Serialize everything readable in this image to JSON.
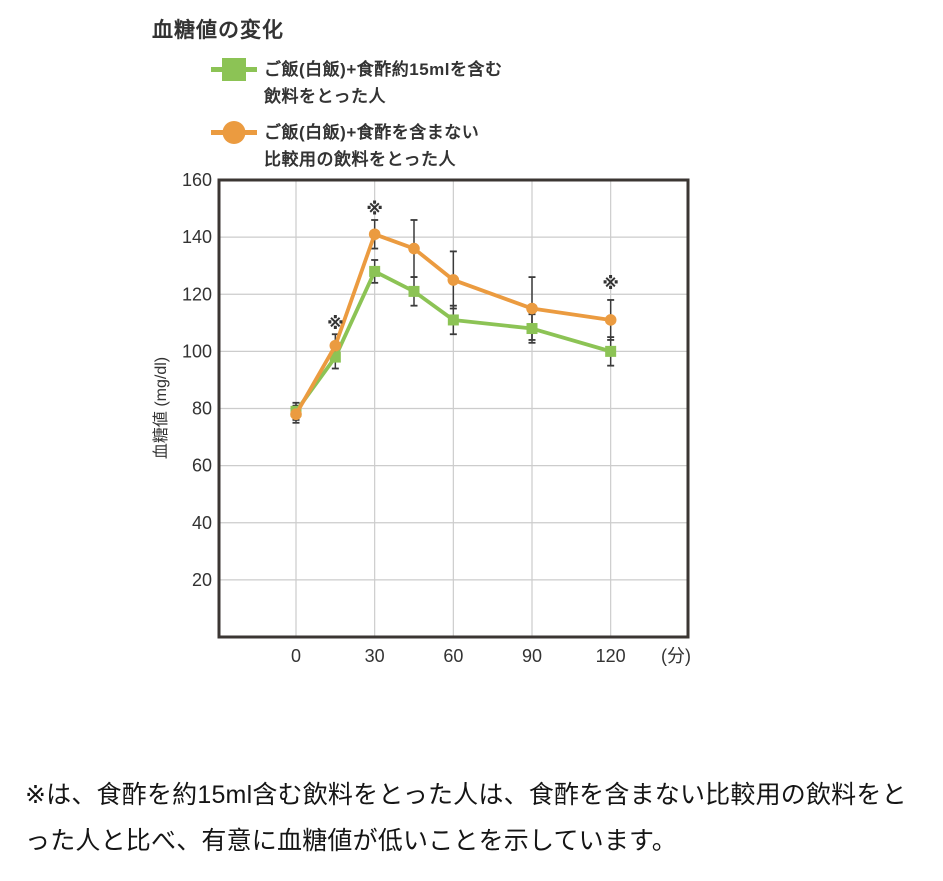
{
  "title": "血糖値の変化",
  "legend": {
    "items": [
      {
        "marker": "square",
        "label_line1": "ご飯(白飯)+食酢約15mlを含む",
        "label_line2": "飲料をとった人"
      },
      {
        "marker": "circle",
        "label_line1": "ご飯(白飯)+食酢を含まない",
        "label_line2": "比較用の飲料をとった人"
      }
    ]
  },
  "footnote": "※は、食酢を約15ml含む飲料をとった人は、食酢を含まない比較用の飲料をとった人と比べ、有意に血糖値が低いことを示しています。",
  "chart_data": {
    "type": "line",
    "title": "血糖値の変化",
    "x": [
      0,
      15,
      30,
      45,
      60,
      90,
      120
    ],
    "x_tick_values": [
      0,
      30,
      60,
      90,
      120
    ],
    "x_tick_labels": [
      "0",
      "30",
      "60",
      "90",
      "120"
    ],
    "x_unit_label": "(分)",
    "ylabel": "血糖値 (mg/dl)",
    "ylim": [
      0,
      160
    ],
    "y_ticks": [
      20,
      40,
      60,
      80,
      100,
      120,
      140,
      160
    ],
    "grid": true,
    "legend_position": "top-left",
    "series": [
      {
        "name": "ご飯(白飯)+食酢約15mlを含む飲料をとった人",
        "marker": "square",
        "color": "#8cc355",
        "values": [
          79,
          98,
          128,
          121,
          111,
          108,
          100
        ],
        "error_bars": [
          3,
          4,
          4,
          5,
          5,
          5,
          5
        ]
      },
      {
        "name": "ご飯(白飯)+食酢を含まない比較用の飲料をとった人",
        "marker": "circle",
        "color": "#eb9b40",
        "values": [
          78,
          102,
          141,
          136,
          125,
          115,
          111
        ],
        "error_bars": [
          3,
          4,
          5,
          10,
          10,
          11,
          7
        ]
      }
    ],
    "annotations": [
      {
        "symbol": "※",
        "x": 15,
        "y": 110
      },
      {
        "symbol": "※",
        "x": 30,
        "y": 150
      },
      {
        "symbol": "※",
        "x": 120,
        "y": 124
      }
    ]
  },
  "colors": {
    "frame": "#3b3633",
    "gridline": "#cccccc",
    "error_bar": "#3a3a3a",
    "axis_text": "#333333"
  }
}
